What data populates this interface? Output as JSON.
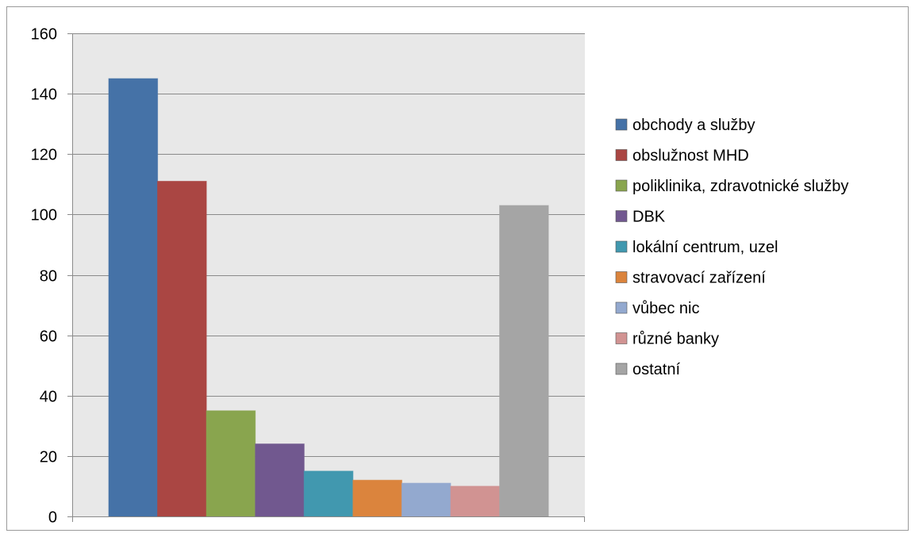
{
  "chart_data": {
    "type": "bar",
    "title": "",
    "xlabel": "",
    "ylabel": "",
    "ylim": [
      0,
      160
    ],
    "yticks": [
      0,
      20,
      40,
      60,
      80,
      100,
      120,
      140,
      160
    ],
    "ytick_labels": [
      "0",
      "20",
      "40",
      "60",
      "80",
      "100",
      "120",
      "140",
      "160"
    ],
    "grid": true,
    "legend_position": "right",
    "plot_background": "#e8e8e8",
    "series": [
      {
        "name": "obchody a služby",
        "value": 145,
        "color": "#4572a7"
      },
      {
        "name": "obslužnost MHD",
        "value": 111,
        "color": "#aa4643"
      },
      {
        "name": "poliklinika, zdravotnické služby",
        "value": 35,
        "color": "#89a54e"
      },
      {
        "name": "DBK",
        "value": 24,
        "color": "#71588f"
      },
      {
        "name": "lokální centrum, uzel",
        "value": 15,
        "color": "#4198af"
      },
      {
        "name": "stravovací zařízení",
        "value": 12,
        "color": "#db843d"
      },
      {
        "name": "vůbec nic",
        "value": 11,
        "color": "#93a9cf"
      },
      {
        "name": "různé banky",
        "value": 10,
        "color": "#d19392"
      },
      {
        "name": "ostatní",
        "value": 103,
        "color": "#a5a5a5"
      }
    ]
  }
}
